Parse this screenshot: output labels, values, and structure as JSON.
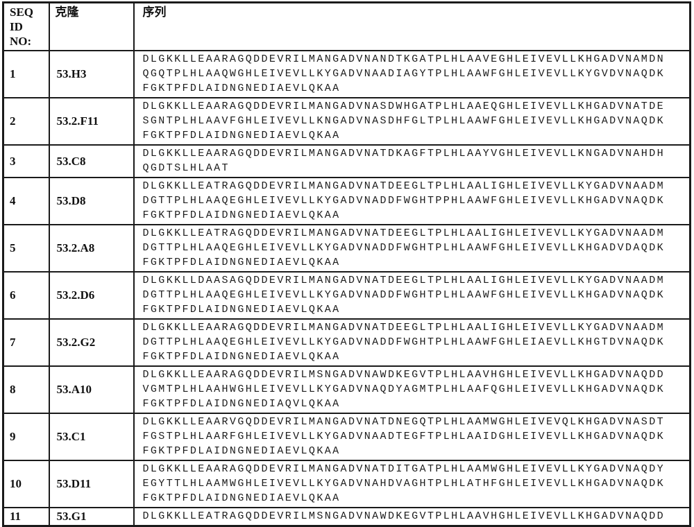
{
  "table": {
    "header": {
      "seq_id": "SEQ ID NO:",
      "clone": "克隆",
      "sequence": "序列"
    },
    "rows": [
      {
        "seq_id": "1",
        "clone": "53.H3",
        "sequence": "DLGKKLLEAARAGQDDEVRILMANGADVNANDTKGATPLHLAAVEGHLEIVEVLLKHGADVNAMDN\nQGQTPLHLAAQWGHLEIVEVLLKYGADVNAADIAGYTPLHLAAWFGHLEIVEVLLKYGVDVNAQDK\nFGKTPFDLAIDNGNEDIAEVLQKAA"
      },
      {
        "seq_id": "2",
        "clone": "53.2.F11",
        "sequence": "DLGKKLLEAARAGQDDEVRILMANGADVNASDWHGATPLHLAAEQGHLEIVEVLLKHGADVNATDE\nSGNTPLHLAAVFGHLEIVEVLLKNGADVNASDHFGLTPLHLAAWFGHLEIVEVLLKHGADVNAQDK\nFGKTPFDLAIDNGNEDIAEVLQKAA"
      },
      {
        "seq_id": "3",
        "clone": "53.C8",
        "sequence": "DLGKKLLEAARAGQDDEVRILMANGADVNATDKAGFTPLHLAAYVGHLEIVEVLLKNGADVNAHDH\nQGDTSLHLAAT"
      },
      {
        "seq_id": "4",
        "clone": "53.D8",
        "sequence": "DLGKKLLEATRAGQDDEVRILMANGADVNATDEEGLTPLHLAALIGHLEIVEVLLKYGADVNAADM\nDGTTPLHLAAQEGHLEIVEVLLKYGADVNADDFWGHTPPHLAAWFGHLEIVEVLLKHGADVNAQDK\nFGKTPFDLAIDNGNEDIAEVLQKAA"
      },
      {
        "seq_id": "5",
        "clone": "53.2.A8",
        "sequence": "DLGKKLLEATRAGQDDEVRILMANGADVNATDEEGLTPLHLAALIGHLEIVEVLLKYGADVNAADM\nDGTTPLHLAAQEGHLEIVEVLLKYGADVNADDFWGHTPLHLAAWFGHLEIVEVLLKHGADVDAQDK\nFGKTPFDLAIDNGNEDIAEVLQKAA"
      },
      {
        "seq_id": "6",
        "clone": "53.2.D6",
        "sequence": "DLGKKLLDAASAGQDDEVRILMANGADVNATDEEGLTPLHLAALIGHLEIVEVLLKYGADVNAADM\nDGTTPLHLAAQEGHLEIVEVLLKYGADVNADDFWGHTPLHLAAWFGHLEIVEVLLKHGADVNAQDK\nFGKTPFDLAIDNGNEDIAEVLQKAA"
      },
      {
        "seq_id": "7",
        "clone": "53.2.G2",
        "sequence": "DLGKKLLEAARAGQDDEVRILMANGADVNATDEEGLTPLHLAALIGHLEIVEVLLKYGADVNAADM\nDGTTPLHLAAQEGHLEIVEVLLKYGADVNADDFWGHTPLHLAAWFGHLEIAEVLLKHGTDVNAQDK\nFGKTPFDLAIDNGNEDIAEVLQKAA"
      },
      {
        "seq_id": "8",
        "clone": "53.A10",
        "sequence": "DLGKKLLEAARAGQDDEVRILMSNGADVNAWDKEGVTPLHLAAVHGHLEIVEVLLKHGADVNAQDD\nVGMTPLHLAAHWGHLEIVEVLLKYGADVNAQDYAGMTPLHLAAFQGHLEIVEVLLKHGADVNAQDK\nFGKTPFDLAIDNGNEDIAQVLQKAA"
      },
      {
        "seq_id": "9",
        "clone": "53.C1",
        "sequence": "DLGKKLLEAARVGQDDEVRILMANGADVNATDNEGQTPLHLAAMWGHLEIVEVQLKHGADVNASDT\nFGSTPLHLAARFGHLEIVEVLLKYGADVNAADTEGFTPLHLAAIDGHLEIVEVLLKHGADVNAQDK\nFGKTPFDLAIDNGNEDIAEVLQKAA"
      },
      {
        "seq_id": "10",
        "clone": "53.D11",
        "sequence": "DLGKKLLEAARAGQDDEVRILMANGADVNATDITGATPLHLAAMWGHLEIVEVLLKYGADVNAQDY\nEGYTTLHLAAMWGHLEIVEVLLKYGADVNAHDVAGHTPLHLATHFGHLEIVEVLLKHGADVNAQDK\nFGKTPFDLAIDNGNEDIAEVLQKAA"
      },
      {
        "seq_id": "11",
        "clone": "53.G1",
        "sequence": "DLGKKLLEATRAGQDDEVRILMSNGADVNAWDKEGVTPLHLAAVHGHLEIVEVLLKHGADVNAQDD"
      }
    ]
  }
}
